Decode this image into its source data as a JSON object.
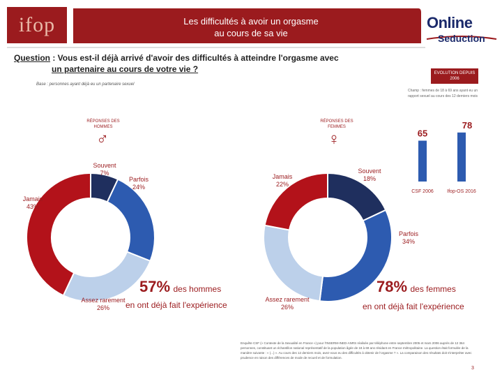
{
  "header": {
    "title_line1": "Les difficultés à avoir un orgasme",
    "title_line2": "au cours de sa vie",
    "colors": {
      "banner": "#9b1b1e",
      "accent": "#9b1b1e",
      "navy": "#1b2a6b"
    }
  },
  "logos": {
    "left": "ifop",
    "right_line1": "Online",
    "right_line2": "Seduction"
  },
  "question": {
    "prefix": "Question",
    "text": " : Vous est-il déjà arrivé d'avoir des difficultés à atteindre l'orgasme avec",
    "text2": "un partenaire au cours de votre vie ?"
  },
  "base_note": "Base : personnes ayant déjà eu un partenaire sexuel",
  "evolution": {
    "badge": "EVOLUTION DEPUIS 2006",
    "note": "Champ : femmes de 18 à 69 ans ayant eu un rapport sexuel au cours des 12 derniers mois"
  },
  "men": {
    "respondents_label": "RÉPONSES DES HOMMES",
    "symbol": "♂",
    "slices": [
      {
        "label": "Souvent",
        "pct": "7%"
      },
      {
        "label": "Parfois",
        "pct": "24%"
      },
      {
        "label": "Assez rarement",
        "pct": "26%"
      },
      {
        "label": "Jamais",
        "pct": "43%"
      }
    ],
    "big_pct": "57%",
    "big_label": "des hommes",
    "experience": "en ont déjà fait l'expérience"
  },
  "women": {
    "respondents_label": "RÉPONSES DES FEMMES",
    "symbol": "♀",
    "slices": [
      {
        "label": "Souvent",
        "pct": "18%"
      },
      {
        "label": "Parfois",
        "pct": "34%"
      },
      {
        "label": "Assez rarement",
        "pct": "26%"
      },
      {
        "label": "Jamais",
        "pct": "22%"
      }
    ],
    "big_pct": "78%",
    "big_label": "des femmes",
    "experience": "en ont déjà fait l'expérience"
  },
  "chart_data": [
    {
      "type": "pie",
      "title": "RÉPONSES DES HOMMES",
      "categories": [
        "Souvent",
        "Parfois",
        "Assez rarement",
        "Jamais"
      ],
      "values": [
        7,
        24,
        26,
        43
      ]
    },
    {
      "type": "pie",
      "title": "RÉPONSES DES FEMMES",
      "categories": [
        "Souvent",
        "Parfois",
        "Assez rarement",
        "Jamais"
      ],
      "values": [
        18,
        34,
        26,
        22
      ]
    },
    {
      "type": "bar",
      "title": "EVOLUTION DEPUIS 2006",
      "categories": [
        "CSF 2006",
        "Ifop-OS 2016"
      ],
      "values": [
        65,
        78
      ],
      "ylim": [
        0,
        100
      ]
    }
  ],
  "source": "Enquête CSF (« Contexte de la Sexualité en France ») pour l'INSERM-INED-ANRS réalisée par téléphone entre septembre 2005 et mars 2006 auprès de 12 364 personnes, constituant un échantillon national représentatif de la population âgée de 18 à 69 ans résidant en France métropolitaine. La question était formulée de la manière suivante : « (...) ». Au cours des 12 derniers mois, avez-vous eu des difficultés à obtenir de l'orgasme ? ». La comparaison des résultats doit s'interpréter avec prudence en raison des différences de mode de recueil et de formulation.",
  "page_number": "3"
}
